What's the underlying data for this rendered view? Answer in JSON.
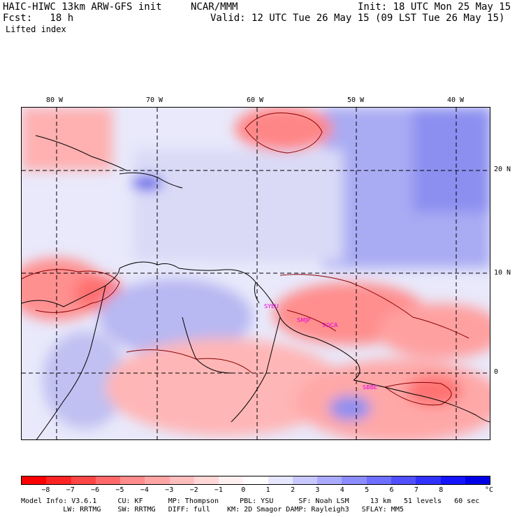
{
  "header": {
    "model_line": "HAIC-HIWC 13km ARW-GFS init",
    "org": "NCAR/MMM",
    "init": "Init: 18 UTC Mon 25 May 15",
    "fcst": "Fcst:   18 h",
    "valid": "Valid: 12 UTC Tue 26 May 15 (09 LST Tue 26 May 15)",
    "field": "Lifted index"
  },
  "map": {
    "lon_labels": [
      "80 W",
      "70 W",
      "60 W",
      "50 W",
      "40 W"
    ],
    "lat_labels": [
      "20 N",
      "10 N",
      "0"
    ],
    "stations": [
      "SYEU",
      "SMJP",
      "SOCA",
      "SBBE"
    ]
  },
  "colorbar": {
    "labels": [
      "-8",
      "-7",
      "-6",
      "-5",
      "-4",
      "-3",
      "-2",
      "-1",
      "0",
      "1",
      "2",
      "3",
      "4",
      "5",
      "6",
      "7",
      "8"
    ],
    "unit": "°C",
    "colors": [
      "#ff0000",
      "#ff2323",
      "#ff4646",
      "#ff6969",
      "#ff8c8c",
      "#ffa5a5",
      "#ffbebe",
      "#ffd7d7",
      "#fff0f0",
      "#ffffff",
      "#e6e6ff",
      "#c8c8ff",
      "#aaaaff",
      "#8c8cff",
      "#6e6eff",
      "#5050ff",
      "#3232ff",
      "#1414ff",
      "#0000e6"
    ]
  },
  "footer": {
    "line1": "Model Info: V3.6.1     CU: KF      MP: Thompson     PBL: YSU      SF: Noah LSM     13 km   51 levels   60 sec",
    "line2": "          LW: RRTMG    SW: RRTMG   DIFF: full    KM: 2D Smagor DAMP: Rayleigh3   SFLAY: MM5"
  }
}
